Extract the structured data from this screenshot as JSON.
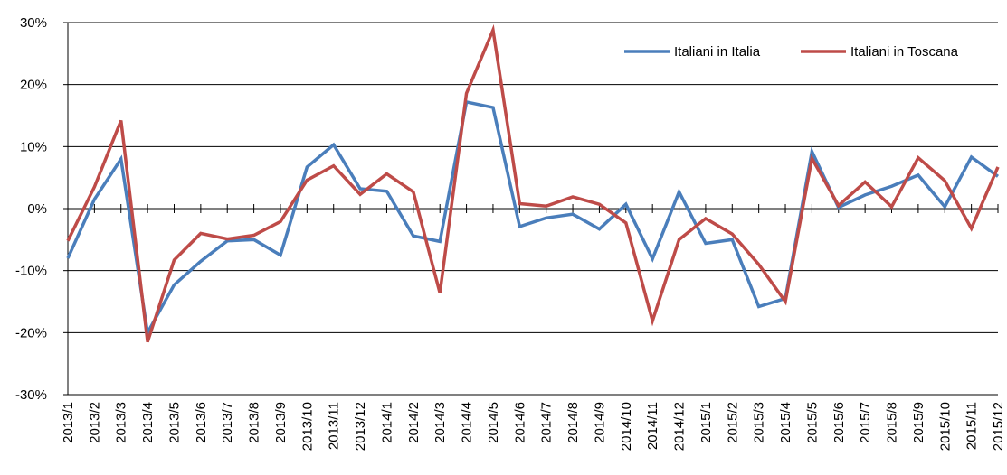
{
  "chart_data": {
    "type": "line",
    "categories": [
      "2013/1",
      "2013/2",
      "2013/3",
      "2013/4",
      "2013/5",
      "2013/6",
      "2013/7",
      "2013/8",
      "2013/9",
      "2013/10",
      "2013/11",
      "2013/12",
      "2014/1",
      "2014/2",
      "2014/3",
      "2014/4",
      "2014/5",
      "2014/6",
      "2014/7",
      "2014/8",
      "2014/9",
      "2014/10",
      "2014/11",
      "2014/12",
      "2015/1",
      "2015/2",
      "2015/3",
      "2015/4",
      "2015/5",
      "2015/6",
      "2015/7",
      "2015/8",
      "2015/9",
      "2015/10",
      "2015/11",
      "2015/12"
    ],
    "series": [
      {
        "name": "Italiani in Italia",
        "color": "#4a7ebb",
        "values": [
          -8,
          1.5,
          8,
          -20,
          -12.3,
          -8.5,
          -5.2,
          -5,
          -7.5,
          6.7,
          10.3,
          3.2,
          2.8,
          -4.4,
          -5.3,
          17.2,
          16.3,
          -2.9,
          -1.5,
          -0.9,
          -3.3,
          0.7,
          -8.1,
          2.7,
          -5.6,
          -5,
          -15.8,
          -14.5,
          9.2,
          0.2,
          2.2,
          3.6,
          5.4,
          0.3,
          8.3,
          5.2
        ]
      },
      {
        "name": "Italiani in Toscana",
        "color": "#be4b48",
        "values": [
          -5.2,
          3.5,
          14.2,
          -21.5,
          -8.3,
          -4,
          -4.9,
          -4.3,
          -2.1,
          4.6,
          6.9,
          2.3,
          5.6,
          2.7,
          -13.6,
          18.6,
          28.8,
          0.8,
          0.4,
          1.9,
          0.7,
          -2.3,
          -18.1,
          -5,
          -1.6,
          -4.1,
          -9,
          -15,
          8.1,
          0.5,
          4.3,
          0.3,
          8.2,
          4.5,
          -3.2,
          6.7
        ]
      }
    ],
    "ylim": [
      -30,
      30
    ],
    "yticks": [
      {
        "value": -30,
        "label": "-30%"
      },
      {
        "value": -20,
        "label": "-20%"
      },
      {
        "value": -10,
        "label": "-10%"
      },
      {
        "value": 0,
        "label": "0%"
      },
      {
        "value": 10,
        "label": "10%"
      },
      {
        "value": 20,
        "label": "20%"
      },
      {
        "value": 30,
        "label": "30%"
      }
    ],
    "grid": true,
    "legend": "top-right"
  }
}
